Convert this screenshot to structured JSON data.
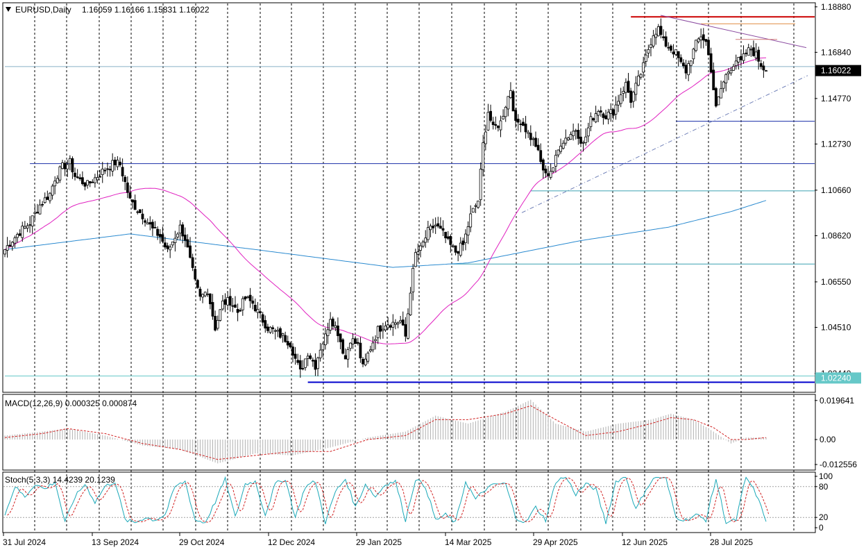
{
  "header": {
    "symbol": "EURUSD,Daily",
    "ohlc": "1.16059 1.16166 1.15831 1.16022",
    "arrow_icon": "triangle-down-icon"
  },
  "chart_data": {
    "type": "candlestick",
    "symbol": "EURUSD",
    "timeframe": "Daily",
    "price_axis": {
      "ticks": [
        "1.18880",
        "1.16840",
        "1.14770",
        "1.12730",
        "1.10660",
        "1.08620",
        "1.06550",
        "1.04510",
        "1.02440"
      ],
      "range": [
        1.0163,
        1.1903
      ],
      "current_price": "1.16022",
      "marked_level": "1.02240"
    },
    "time_axis": {
      "labels": [
        "31 Jul 2024",
        "13 Sep 2024",
        "29 Oct 2024",
        "12 Dec 2024",
        "29 Jan 2025",
        "14 Mar 2025",
        "29 Apr 2025",
        "12 Jun 2025",
        "28 Jul 2025"
      ]
    },
    "price_anchors": [
      [
        0,
        1.08
      ],
      [
        2,
        1.083
      ],
      [
        6,
        1.088
      ],
      [
        10,
        1.092
      ],
      [
        14,
        1.1
      ],
      [
        18,
        1.105
      ],
      [
        20,
        1.112
      ],
      [
        23,
        1.117
      ],
      [
        26,
        1.119
      ],
      [
        28,
        1.113
      ],
      [
        30,
        1.111
      ],
      [
        33,
        1.109
      ],
      [
        36,
        1.112
      ],
      [
        40,
        1.116
      ],
      [
        44,
        1.119
      ],
      [
        46,
        1.118
      ],
      [
        48,
        1.11
      ],
      [
        50,
        1.102
      ],
      [
        53,
        1.098
      ],
      [
        56,
        1.094
      ],
      [
        59,
        1.089
      ],
      [
        62,
        1.086
      ],
      [
        65,
        1.079
      ],
      [
        68,
        1.086
      ],
      [
        70,
        1.09
      ],
      [
        72,
        1.085
      ],
      [
        74,
        1.075
      ],
      [
        76,
        1.065
      ],
      [
        78,
        1.058
      ],
      [
        81,
        1.062
      ],
      [
        84,
        1.045
      ],
      [
        87,
        1.056
      ],
      [
        90,
        1.057
      ],
      [
        93,
        1.052
      ],
      [
        96,
        1.058
      ],
      [
        99,
        1.056
      ],
      [
        102,
        1.05
      ],
      [
        105,
        1.045
      ],
      [
        108,
        1.043
      ],
      [
        111,
        1.041
      ],
      [
        114,
        1.038
      ],
      [
        116,
        1.031
      ],
      [
        118,
        1.025
      ],
      [
        121,
        1.034
      ],
      [
        124,
        1.028
      ],
      [
        126,
        1.036
      ],
      [
        128,
        1.041
      ],
      [
        130,
        1.05
      ],
      [
        133,
        1.043
      ],
      [
        136,
        1.031
      ],
      [
        138,
        1.04
      ],
      [
        141,
        1.037
      ],
      [
        143,
        1.027
      ],
      [
        146,
        1.036
      ],
      [
        149,
        1.044
      ],
      [
        152,
        1.047
      ],
      [
        155,
        1.047
      ],
      [
        158,
        1.048
      ],
      [
        160,
        1.041
      ],
      [
        162,
        1.062
      ],
      [
        164,
        1.078
      ],
      [
        166,
        1.08
      ],
      [
        169,
        1.088
      ],
      [
        172,
        1.091
      ],
      [
        175,
        1.087
      ],
      [
        177,
        1.083
      ],
      [
        180,
        1.079
      ],
      [
        183,
        1.082
      ],
      [
        186,
        1.095
      ],
      [
        189,
        1.102
      ],
      [
        191,
        1.127
      ],
      [
        193,
        1.142
      ],
      [
        195,
        1.134
      ],
      [
        198,
        1.137
      ],
      [
        200,
        1.145
      ],
      [
        202,
        1.152
      ],
      [
        204,
        1.136
      ],
      [
        206,
        1.138
      ],
      [
        209,
        1.132
      ],
      [
        212,
        1.127
      ],
      [
        214,
        1.119
      ],
      [
        216,
        1.113
      ],
      [
        219,
        1.117
      ],
      [
        222,
        1.128
      ],
      [
        225,
        1.131
      ],
      [
        228,
        1.134
      ],
      [
        231,
        1.127
      ],
      [
        234,
        1.138
      ],
      [
        237,
        1.143
      ],
      [
        240,
        1.14
      ],
      [
        243,
        1.142
      ],
      [
        246,
        1.15
      ],
      [
        248,
        1.154
      ],
      [
        250,
        1.147
      ],
      [
        252,
        1.153
      ],
      [
        255,
        1.162
      ],
      [
        257,
        1.17
      ],
      [
        259,
        1.177
      ],
      [
        261,
        1.179
      ],
      [
        263,
        1.173
      ],
      [
        266,
        1.17
      ],
      [
        268,
        1.168
      ],
      [
        270,
        1.163
      ],
      [
        272,
        1.16
      ],
      [
        274,
        1.166
      ],
      [
        276,
        1.172
      ],
      [
        278,
        1.176
      ],
      [
        280,
        1.173
      ],
      [
        282,
        1.161
      ],
      [
        284,
        1.143
      ],
      [
        286,
        1.152
      ],
      [
        288,
        1.158
      ],
      [
        290,
        1.162
      ],
      [
        292,
        1.165
      ],
      [
        294,
        1.164
      ],
      [
        296,
        1.168
      ],
      [
        298,
        1.17
      ],
      [
        300,
        1.167
      ],
      [
        302,
        1.163
      ],
      [
        304,
        1.16
      ]
    ],
    "ma_200_anchors": [
      [
        0,
        1.08
      ],
      [
        50,
        1.087
      ],
      [
        100,
        1.08
      ],
      [
        155,
        1.072
      ],
      [
        185,
        1.074
      ],
      [
        230,
        1.084
      ],
      [
        265,
        1.09
      ],
      [
        290,
        1.097
      ],
      [
        304,
        1.102
      ]
    ],
    "horizontal_lines": [
      {
        "price": 1.1843,
        "x_start_bar": 250,
        "color": "#cc0000"
      },
      {
        "price": 1.1812,
        "x_start_bar": 278,
        "color": "#e08a40"
      },
      {
        "price": 1.162,
        "x_start_bar": 0,
        "color": "#88b0c8"
      },
      {
        "price": 1.1375,
        "x_start_bar": 268,
        "color": "#1a2ea8"
      },
      {
        "price": 1.1185,
        "x_start_bar": 10,
        "color": "#1a2ea8"
      },
      {
        "price": 1.1063,
        "x_start_bar": 210,
        "color": "#3aa0b0"
      },
      {
        "price": 1.0735,
        "x_start_bar": 178,
        "color": "#3aa0b0"
      },
      {
        "price": 1.0233,
        "x_start_bar": 0,
        "color": "#66c8c8"
      },
      {
        "price": 1.0205,
        "x_start_bar": 121,
        "color": "#0000cc"
      }
    ],
    "macd": {
      "header": "MACD(12,26,9) 0.000325 0.000874",
      "ticks": [
        "0.019641",
        "0.00",
        "-0.012556"
      ],
      "range": [
        -0.015,
        0.022
      ],
      "histogram_anchors": [
        [
          0,
          0.002
        ],
        [
          15,
          0.004
        ],
        [
          25,
          0.0055
        ],
        [
          40,
          0.002
        ],
        [
          55,
          -0.003
        ],
        [
          70,
          -0.005
        ],
        [
          85,
          -0.012
        ],
        [
          100,
          -0.007
        ],
        [
          115,
          -0.008
        ],
        [
          130,
          -0.004
        ],
        [
          145,
          0.001
        ],
        [
          160,
          0.004
        ],
        [
          172,
          0.012
        ],
        [
          185,
          0.008
        ],
        [
          200,
          0.014
        ],
        [
          210,
          0.02
        ],
        [
          220,
          0.008
        ],
        [
          232,
          0.004
        ],
        [
          245,
          0.008
        ],
        [
          258,
          0.01
        ],
        [
          266,
          0.013
        ],
        [
          275,
          0.01
        ],
        [
          283,
          0.004
        ],
        [
          290,
          -0.002
        ],
        [
          296,
          0.001
        ],
        [
          304,
          0.001
        ]
      ],
      "signal_anchors": [
        [
          0,
          0.001
        ],
        [
          15,
          0.003
        ],
        [
          25,
          0.0055
        ],
        [
          40,
          0.003
        ],
        [
          55,
          -0.002
        ],
        [
          70,
          -0.005
        ],
        [
          85,
          -0.01
        ],
        [
          100,
          -0.008
        ],
        [
          115,
          -0.006
        ],
        [
          130,
          -0.006
        ],
        [
          145,
          0.0
        ],
        [
          160,
          0.002
        ],
        [
          172,
          0.01
        ],
        [
          185,
          0.01
        ],
        [
          200,
          0.013
        ],
        [
          210,
          0.017
        ],
        [
          220,
          0.01
        ],
        [
          232,
          0.002
        ],
        [
          245,
          0.004
        ],
        [
          258,
          0.008
        ],
        [
          266,
          0.011
        ],
        [
          275,
          0.01
        ],
        [
          283,
          0.006
        ],
        [
          290,
          0.0
        ],
        [
          296,
          0.0
        ],
        [
          304,
          0.001
        ]
      ]
    },
    "stochastic": {
      "header": "Stoch(5,3,3) 14.4239 20.1239",
      "ticks": [
        "100",
        "80",
        "20",
        "0"
      ],
      "range": [
        0,
        100
      ],
      "levels": [
        80,
        20
      ],
      "main_anchors": [
        [
          0,
          25
        ],
        [
          4,
          80
        ],
        [
          8,
          60
        ],
        [
          12,
          85
        ],
        [
          16,
          75
        ],
        [
          20,
          90
        ],
        [
          24,
          10
        ],
        [
          28,
          60
        ],
        [
          32,
          85
        ],
        [
          36,
          50
        ],
        [
          40,
          80
        ],
        [
          44,
          90
        ],
        [
          48,
          15
        ],
        [
          52,
          10
        ],
        [
          56,
          20
        ],
        [
          60,
          15
        ],
        [
          64,
          25
        ],
        [
          68,
          80
        ],
        [
          72,
          90
        ],
        [
          76,
          15
        ],
        [
          80,
          10
        ],
        [
          84,
          50
        ],
        [
          88,
          95
        ],
        [
          92,
          20
        ],
        [
          96,
          85
        ],
        [
          100,
          90
        ],
        [
          104,
          25
        ],
        [
          108,
          85
        ],
        [
          112,
          95
        ],
        [
          116,
          20
        ],
        [
          120,
          80
        ],
        [
          124,
          90
        ],
        [
          128,
          10
        ],
        [
          132,
          70
        ],
        [
          136,
          95
        ],
        [
          140,
          40
        ],
        [
          144,
          85
        ],
        [
          148,
          60
        ],
        [
          152,
          85
        ],
        [
          156,
          90
        ],
        [
          160,
          15
        ],
        [
          164,
          95
        ],
        [
          168,
          80
        ],
        [
          172,
          15
        ],
        [
          176,
          25
        ],
        [
          180,
          10
        ],
        [
          184,
          90
        ],
        [
          188,
          55
        ],
        [
          192,
          75
        ],
        [
          196,
          85
        ],
        [
          200,
          85
        ],
        [
          204,
          20
        ],
        [
          208,
          10
        ],
        [
          212,
          40
        ],
        [
          216,
          15
        ],
        [
          220,
          90
        ],
        [
          224,
          100
        ],
        [
          228,
          65
        ],
        [
          232,
          85
        ],
        [
          236,
          75
        ],
        [
          240,
          10
        ],
        [
          244,
          90
        ],
        [
          248,
          100
        ],
        [
          252,
          35
        ],
        [
          256,
          75
        ],
        [
          260,
          100
        ],
        [
          264,
          95
        ],
        [
          268,
          20
        ],
        [
          272,
          15
        ],
        [
          276,
          25
        ],
        [
          280,
          15
        ],
        [
          284,
          95
        ],
        [
          288,
          10
        ],
        [
          292,
          15
        ],
        [
          296,
          100
        ],
        [
          300,
          65
        ],
        [
          304,
          15
        ]
      ]
    },
    "grid": {
      "vertical_dashed": true,
      "horizontal": false
    }
  }
}
